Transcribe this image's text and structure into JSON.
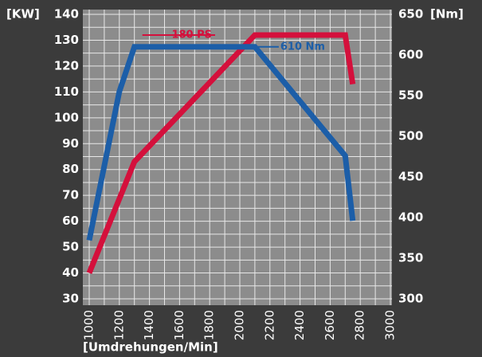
{
  "chart_data": {
    "type": "line",
    "ylabel": "[KW]",
    "y2label": "[Nm]",
    "xlabel": "[Umdrehungen/Min]",
    "xlim": [
      1000,
      3000
    ],
    "xticks": [
      1000,
      1200,
      1400,
      1600,
      1800,
      2000,
      2200,
      2400,
      2600,
      2800,
      3000
    ],
    "ylim": [
      30,
      140
    ],
    "yticks": [
      30,
      40,
      50,
      60,
      70,
      80,
      90,
      100,
      110,
      120,
      130,
      140
    ],
    "y2lim": [
      300,
      650
    ],
    "y2ticks": [
      300,
      350,
      400,
      450,
      500,
      550,
      600,
      650
    ],
    "grid": true,
    "minor_grid": true,
    "series": [
      {
        "name": "180 PS",
        "color": "#d4103c",
        "x": [
          1000,
          1300,
          2100,
          2700,
          2750
        ],
        "values": [
          40,
          83,
          132,
          132,
          113
        ]
      },
      {
        "name": "610 Nm",
        "color": "#1c5ea8",
        "axis": "y2",
        "x": [
          1000,
          1200,
          1300,
          2100,
          2700,
          2750
        ],
        "values": [
          372,
          555,
          610,
          610,
          476,
          396
        ]
      }
    ]
  }
}
